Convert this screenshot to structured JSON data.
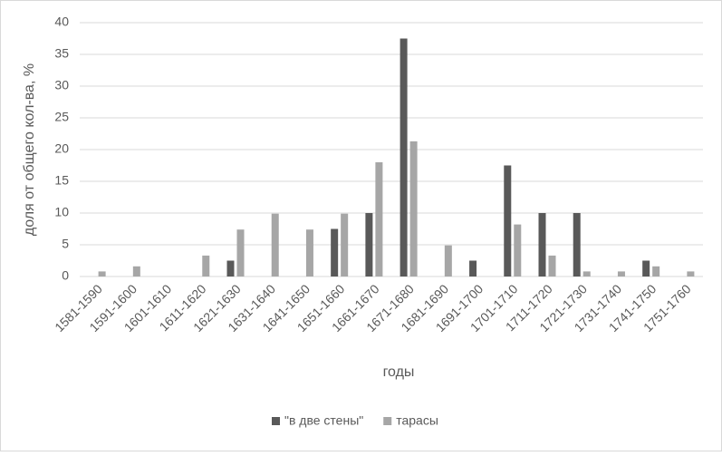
{
  "chart_data": {
    "type": "bar",
    "x_label": "годы",
    "y_label": "доля от общего кол-ва, %",
    "categories": [
      "1581-1590",
      "1591-1600",
      "1601-1610",
      "1611-1620",
      "1621-1630",
      "1631-1640",
      "1641-1650",
      "1651-1660",
      "1661-1670",
      "1671-1680",
      "1681-1690",
      "1691-1700",
      "1701-1710",
      "1711-1720",
      "1721-1730",
      "1731-1740",
      "1741-1750",
      "1751-1760"
    ],
    "series": [
      {
        "name": "\"в две стены\"",
        "color": "#595959",
        "values": [
          0,
          0,
          0,
          0,
          2.5,
          0,
          0,
          7.5,
          10,
          37.5,
          0,
          2.5,
          17.5,
          10,
          10,
          0,
          2.5,
          0
        ]
      },
      {
        "name": "тарасы",
        "color": "#a6a6a6",
        "values": [
          0.8,
          1.6,
          0,
          3.3,
          7.4,
          9.9,
          7.4,
          9.9,
          18,
          21.3,
          4.9,
          0,
          8.2,
          3.3,
          0.8,
          0.8,
          1.6,
          0.8
        ]
      }
    ],
    "ylim": [
      0,
      40
    ],
    "yticks": [
      0,
      5,
      10,
      15,
      20,
      25,
      30,
      35,
      40
    ],
    "grid": true,
    "legend": "bottom"
  }
}
